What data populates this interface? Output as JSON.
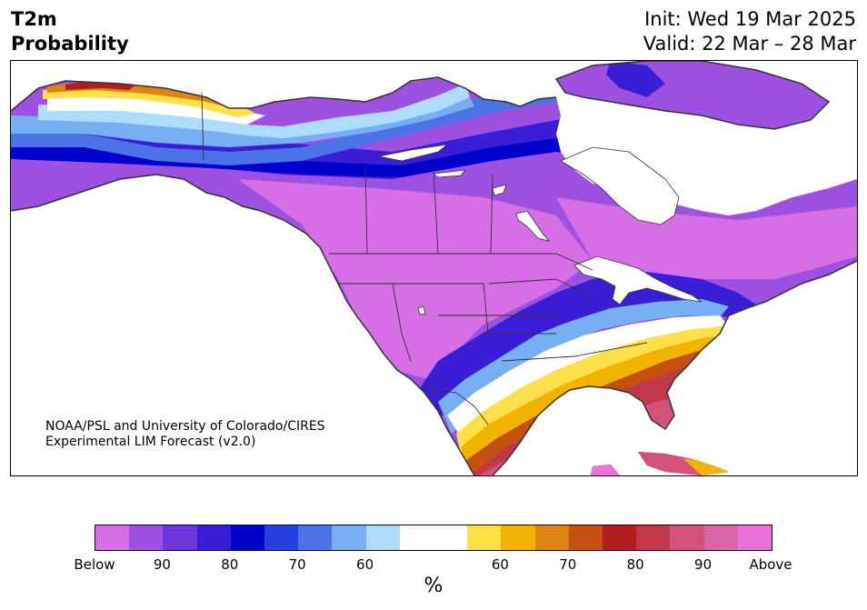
{
  "header": {
    "title_line1": "T2m",
    "title_line2": "Probability",
    "init_text": "Init: Wed 19 Mar 2025",
    "valid_text": "Valid: 22 Mar – 28 Mar"
  },
  "credit": {
    "line1": "NOAA/PSL and University of Colorado/CIRES",
    "line2": "Experimental LIM Forecast (v2.0)"
  },
  "colorbar": {
    "colors": [
      "#d66ee6",
      "#9e50e0",
      "#6e36d8",
      "#3a1ed6",
      "#0000cc",
      "#2640dc",
      "#4c72e8",
      "#76b0f2",
      "#aedcfc",
      "#ffffff",
      "#ffffff",
      "#ffe048",
      "#f0b400",
      "#dc8410",
      "#c45012",
      "#b01e1e",
      "#c0384a",
      "#d2527a",
      "#d866a6",
      "#e872d6"
    ],
    "tick_labels": [
      "Below",
      "90",
      "80",
      "70",
      "60",
      "60",
      "70",
      "80",
      "90",
      "Above"
    ],
    "unit": "%"
  },
  "map": {
    "categories": {
      "below_extreme": "#d66ee6",
      "below_90": "#9e50e0",
      "below_85": "#6e36d8",
      "below_80": "#3a1ed6",
      "below_75": "#0000cc",
      "below_70": "#2640dc",
      "below_65": "#4c72e8",
      "below_60": "#76b0f2",
      "below_55": "#aedcfc",
      "neutral": "#ffffff",
      "above_55": "#ffe048",
      "above_60": "#f0b400",
      "above_65": "#dc8410",
      "above_70": "#c45012",
      "above_75": "#b01e1e",
      "above_80": "#c0384a",
      "above_85": "#d2527a",
      "above_90": "#d866a6",
      "above_extreme": "#e872d6"
    }
  }
}
